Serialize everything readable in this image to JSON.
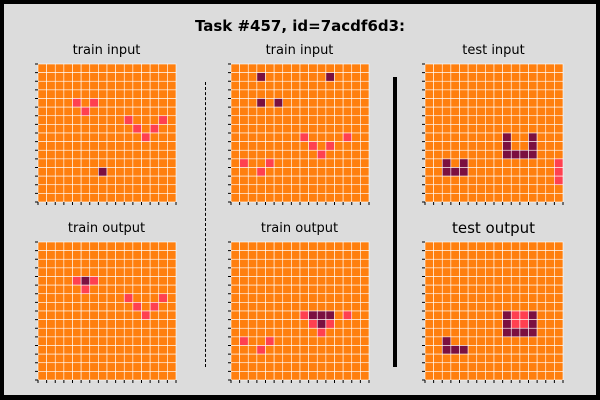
{
  "title": "Task #457, id=7acdf6d3:",
  "colors": {
    "0": "#ff7f0e",
    "1": "#ff4050",
    "2": "#7b1040",
    "gridline": "#ffffff",
    "background": "#dcdcdc"
  },
  "panels": [
    {
      "label": "train input",
      "cells": [
        [
          4,
          4,
          1
        ],
        [
          4,
          6,
          1
        ],
        [
          5,
          5,
          1
        ],
        [
          6,
          10,
          1
        ],
        [
          7,
          11,
          1
        ],
        [
          7,
          13,
          1
        ],
        [
          6,
          14,
          1
        ],
        [
          8,
          12,
          1
        ],
        [
          12,
          7,
          2
        ]
      ]
    },
    {
      "label": "train input",
      "cells": [
        [
          1,
          3,
          2
        ],
        [
          1,
          11,
          2
        ],
        [
          4,
          3,
          2
        ],
        [
          4,
          5,
          2
        ],
        [
          8,
          8,
          1
        ],
        [
          9,
          9,
          1
        ],
        [
          9,
          11,
          1
        ],
        [
          10,
          10,
          1
        ],
        [
          8,
          13,
          1
        ],
        [
          11,
          1,
          1
        ],
        [
          11,
          4,
          1
        ],
        [
          12,
          3,
          1
        ]
      ]
    },
    {
      "label": "test input",
      "cells": [
        [
          8,
          9,
          2
        ],
        [
          8,
          12,
          2
        ],
        [
          9,
          9,
          2
        ],
        [
          9,
          12,
          2
        ],
        [
          10,
          9,
          2
        ],
        [
          10,
          10,
          2
        ],
        [
          10,
          11,
          2
        ],
        [
          10,
          12,
          2
        ],
        [
          11,
          2,
          2
        ],
        [
          11,
          4,
          2
        ],
        [
          12,
          2,
          2
        ],
        [
          12,
          3,
          2
        ],
        [
          12,
          4,
          2
        ],
        [
          11,
          15,
          1
        ],
        [
          12,
          15,
          1
        ],
        [
          13,
          15,
          1
        ]
      ]
    },
    {
      "label": "train output",
      "cells": [
        [
          4,
          4,
          1
        ],
        [
          4,
          5,
          2
        ],
        [
          4,
          6,
          1
        ],
        [
          5,
          5,
          1
        ],
        [
          6,
          10,
          1
        ],
        [
          7,
          11,
          1
        ],
        [
          7,
          13,
          1
        ],
        [
          6,
          14,
          1
        ],
        [
          8,
          12,
          1
        ]
      ]
    },
    {
      "label": "train output",
      "cells": [
        [
          8,
          8,
          1
        ],
        [
          8,
          9,
          2
        ],
        [
          8,
          10,
          2
        ],
        [
          8,
          11,
          2
        ],
        [
          8,
          13,
          1
        ],
        [
          9,
          9,
          1
        ],
        [
          9,
          10,
          2
        ],
        [
          9,
          11,
          1
        ],
        [
          10,
          10,
          1
        ],
        [
          11,
          1,
          1
        ],
        [
          11,
          4,
          1
        ],
        [
          12,
          3,
          1
        ]
      ]
    },
    {
      "label": "test output",
      "cells": [
        [
          8,
          9,
          2
        ],
        [
          8,
          10,
          1
        ],
        [
          8,
          11,
          1
        ],
        [
          8,
          12,
          2
        ],
        [
          9,
          9,
          2
        ],
        [
          9,
          10,
          1
        ],
        [
          9,
          11,
          1
        ],
        [
          9,
          12,
          2
        ],
        [
          10,
          9,
          2
        ],
        [
          10,
          10,
          2
        ],
        [
          10,
          11,
          2
        ],
        [
          10,
          12,
          2
        ],
        [
          11,
          2,
          2
        ],
        [
          12,
          2,
          2
        ],
        [
          12,
          3,
          2
        ],
        [
          12,
          4,
          2
        ]
      ]
    }
  ]
}
